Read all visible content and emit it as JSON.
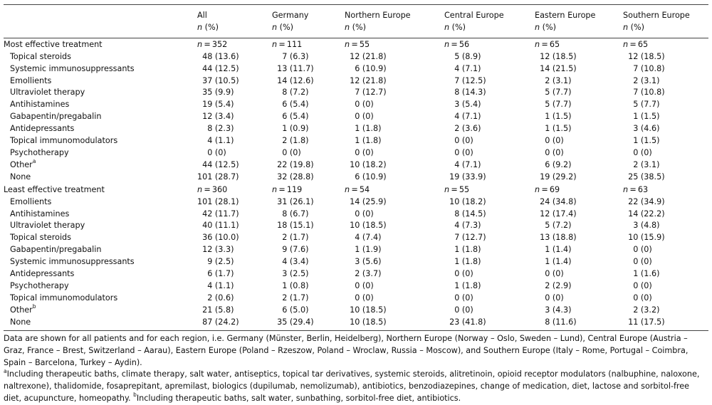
{
  "columns": [
    {
      "title": "",
      "sub": ""
    },
    {
      "title": "All",
      "sub": "n (%)"
    },
    {
      "title": "Germany",
      "sub": "n (%)"
    },
    {
      "title": "Northern Europe",
      "sub": "n (%)"
    },
    {
      "title": "Central Europe",
      "sub": "n (%)"
    },
    {
      "title": "Eastern Europe",
      "sub": "n (%)"
    },
    {
      "title": "Southern Europe",
      "sub": "n (%)"
    }
  ],
  "sections": [
    {
      "label": "Most effective treatment",
      "ns": [
        "n = 352",
        "n = 111",
        "n = 55",
        "n = 56",
        "n = 65",
        "n = 65"
      ],
      "rows": [
        {
          "label": "Topical steroids",
          "sup": "",
          "values": [
            "48 (13.6)",
            "7 (6.3)",
            "12 (21.8)",
            "5 (8.9)",
            "12 (18.5)",
            "12 (18.5)"
          ]
        },
        {
          "label": "Systemic immunosuppressants",
          "sup": "",
          "values": [
            "44 (12.5)",
            "13 (11.7)",
            "6 (10.9)",
            "4 (7.1)",
            "14 (21.5)",
            "7 (10.8)"
          ]
        },
        {
          "label": "Emollients",
          "sup": "",
          "values": [
            "37 (10.5)",
            "14 (12.6)",
            "12 (21.8)",
            "7 (12.5)",
            "2 (3.1)",
            "2 (3.1)"
          ]
        },
        {
          "label": "Ultraviolet therapy",
          "sup": "",
          "values": [
            "35 (9.9)",
            "8 (7.2)",
            "7 (12.7)",
            "8 (14.3)",
            "5 (7.7)",
            "7 (10.8)"
          ]
        },
        {
          "label": "Antihistamines",
          "sup": "",
          "values": [
            "19 (5.4)",
            "6 (5.4)",
            "0 (0)",
            "3 (5.4)",
            "5 (7.7)",
            "5 (7.7)"
          ]
        },
        {
          "label": "Gabapentin/pregabalin",
          "sup": "",
          "values": [
            "12 (3.4)",
            "6 (5.4)",
            "0 (0)",
            "4 (7.1)",
            "1 (1.5)",
            "1 (1.5)"
          ]
        },
        {
          "label": "Antidepressants",
          "sup": "",
          "values": [
            "8 (2.3)",
            "1 (0.9)",
            "1 (1.8)",
            "2 (3.6)",
            "1 (1.5)",
            "3 (4.6)"
          ]
        },
        {
          "label": "Topical immunomodulators",
          "sup": "",
          "values": [
            "4 (1.1)",
            "2 (1.8)",
            "1 (1.8)",
            "0 (0)",
            "0 (0)",
            "1 (1.5)"
          ]
        },
        {
          "label": "Psychotherapy",
          "sup": "",
          "values": [
            "0 (0)",
            "0 (0)",
            "0 (0)",
            "0 (0)",
            "0 (0)",
            "0 (0)"
          ]
        },
        {
          "label": "Other",
          "sup": "a",
          "values": [
            "44 (12.5)",
            "22 (19.8)",
            "10 (18.2)",
            "4 (7.1)",
            "6 (9.2)",
            "2 (3.1)"
          ]
        },
        {
          "label": "None",
          "sup": "",
          "values": [
            "101 (28.7)",
            "32 (28.8)",
            "6 (10.9)",
            "19 (33.9)",
            "19 (29.2)",
            "25 (38.5)"
          ]
        }
      ]
    },
    {
      "label": "Least effective treatment",
      "ns": [
        "n = 360",
        "n = 119",
        "n = 54",
        "n = 55",
        "n = 69",
        "n = 63"
      ],
      "rows": [
        {
          "label": "Emollients",
          "sup": "",
          "values": [
            "101 (28.1)",
            "31 (26.1)",
            "14 (25.9)",
            "10 (18.2)",
            "24 (34.8)",
            "22 (34.9)"
          ]
        },
        {
          "label": "Antihistamines",
          "sup": "",
          "values": [
            "42 (11.7)",
            "8 (6.7)",
            "0 (0)",
            "8 (14.5)",
            "12 (17.4)",
            "14 (22.2)"
          ]
        },
        {
          "label": "Ultraviolet therapy",
          "sup": "",
          "values": [
            "40 (11.1)",
            "18 (15.1)",
            "10 (18.5)",
            "4 (7.3)",
            "5 (7.2)",
            "3 (4.8)"
          ]
        },
        {
          "label": "Topical steroids",
          "sup": "",
          "values": [
            "36 (10.0)",
            "2 (1.7)",
            "4 (7.4)",
            "7 (12.7)",
            "13 (18.8)",
            "10 (15.9)"
          ]
        },
        {
          "label": "Gabapentin/pregabalin",
          "sup": "",
          "values": [
            "12 (3.3)",
            "9 (7.6)",
            "1 (1.9)",
            "1 (1.8)",
            "1 (1.4)",
            "0 (0)"
          ]
        },
        {
          "label": "Systemic immunosuppressants",
          "sup": "",
          "values": [
            "9 (2.5)",
            "4 (3.4)",
            "3 (5.6)",
            "1 (1.8)",
            "1 (1.4)",
            "0 (0)"
          ]
        },
        {
          "label": "Antidepressants",
          "sup": "",
          "values": [
            "6 (1.7)",
            "3 (2.5)",
            "2 (3.7)",
            "0 (0)",
            "0 (0)",
            "1 (1.6)"
          ]
        },
        {
          "label": "Psychotherapy",
          "sup": "",
          "values": [
            "4 (1.1)",
            "1 (0.8)",
            "0 (0)",
            "1 (1.8)",
            "2 (2.9)",
            "0 (0)"
          ]
        },
        {
          "label": "Topical immunomodulators",
          "sup": "",
          "values": [
            "2 (0.6)",
            "2 (1.7)",
            "0 (0)",
            "0 (0)",
            "0 (0)",
            "0 (0)"
          ]
        },
        {
          "label": "Other",
          "sup": "b",
          "values": [
            "21 (5.8)",
            "6 (5.0)",
            "10 (18.5)",
            "0 (0)",
            "3 (4.3)",
            "2 (3.2)"
          ]
        },
        {
          "label": "None",
          "sup": "",
          "values": [
            "87 (24.2)",
            "35 (29.4)",
            "10 (18.5)",
            "23 (41.8)",
            "8 (11.6)",
            "11 (17.5)"
          ]
        }
      ]
    }
  ],
  "footnotes": {
    "data_note": "Data are shown for all patients and for each region, i.e. Germany (Münster, Berlin, Heidelberg), Northern Europe (Norway – Oslo, Sweden – Lund), Central Europe (Austria – Graz, France – Brest, Switzerland – Aarau), Eastern Europe (Poland – Rzeszow, Poland – Wroclaw, Russia – Moscow), and Southern Europe (Italy – Rome, Portugal – Coimbra, Spain – Barcelona, Turkey – Aydin).",
    "a_marker": "a",
    "a_text": "Including therapeutic baths, climate therapy, salt water, antiseptics, topical tar derivatives, systemic steroids, alitretinoin, opioid receptor modulators (nalbuphine, naloxone, naltrexone), thalidomide, fosaprepitant, apremilast, biologics (dupilumab, nemolizumab), antibiotics, benzodiazepines, change of medication, diet, lactose and sorbitol-free diet, acupuncture, homeopathy.",
    "b_marker": "b",
    "b_text": "Including therapeutic baths, salt water, sunbathing, sorbitol-free diet, antibiotics."
  }
}
